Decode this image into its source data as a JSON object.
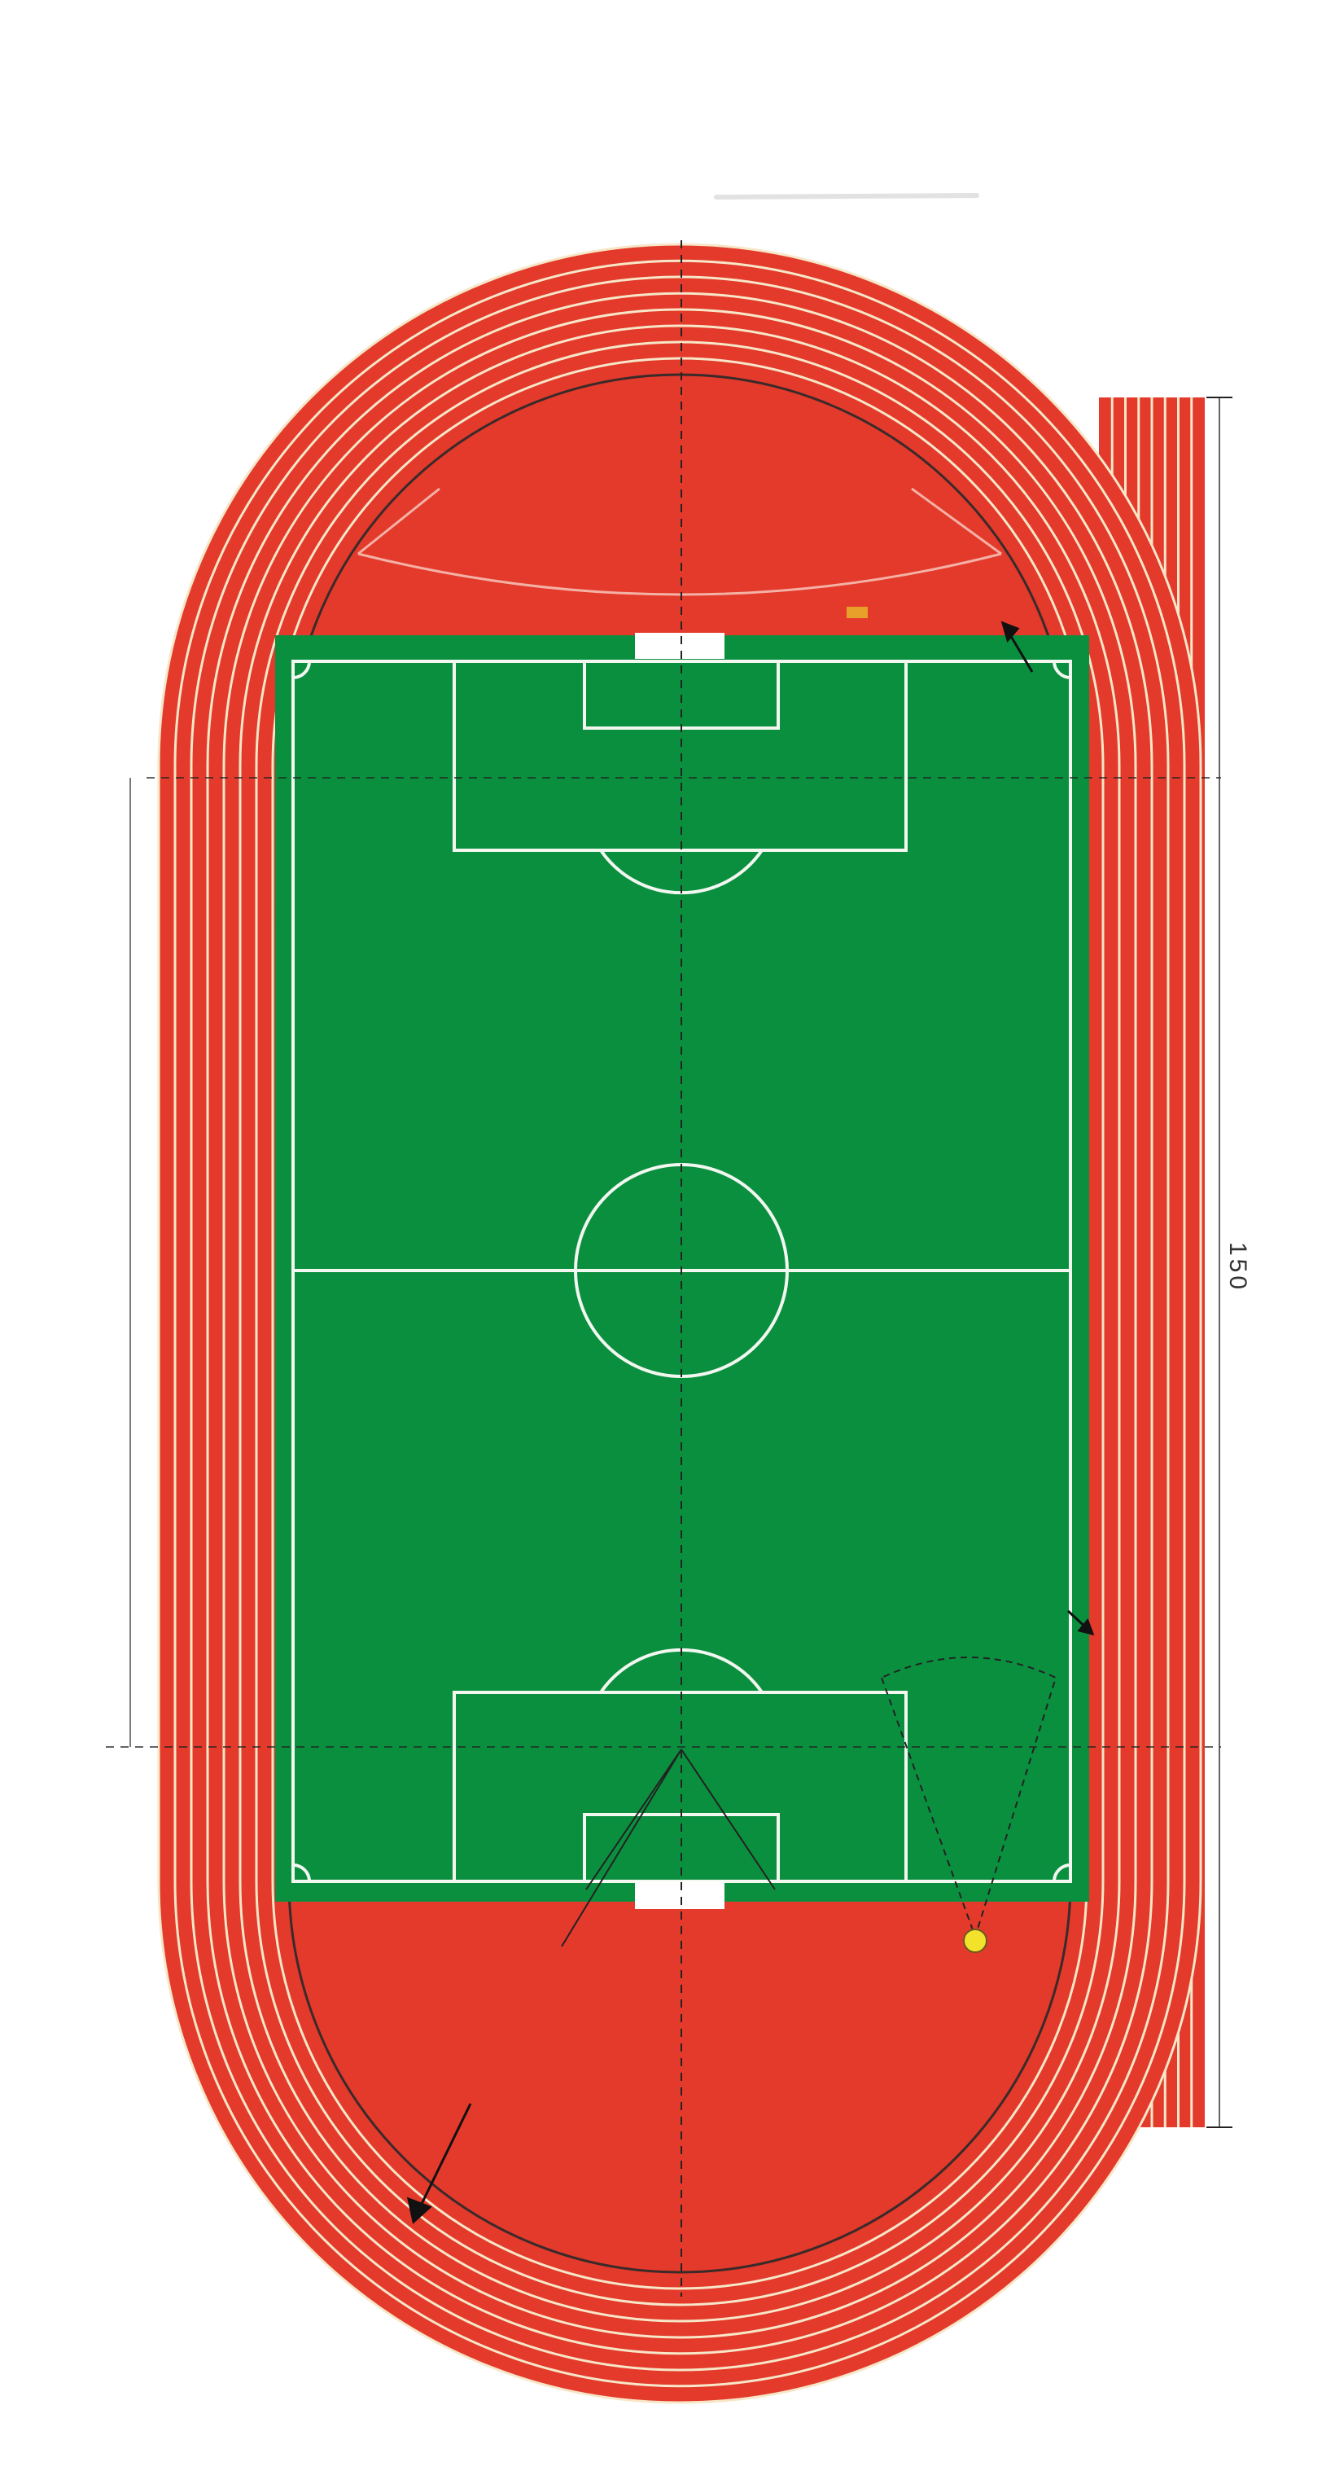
{
  "diagram": {
    "dimension_label": "150",
    "lane_count": 8,
    "straight_lane_count": 8,
    "colors": {
      "track": "#e33a2b",
      "lane_line": "#f7e6c8",
      "field": "#0a8f3f",
      "field_line": "#f2f7ef",
      "guide_line": "#222222",
      "background": "#ffffff",
      "marker": "#f2e22c"
    },
    "icons": [
      "arrow-icon",
      "marker-dot-icon"
    ]
  }
}
